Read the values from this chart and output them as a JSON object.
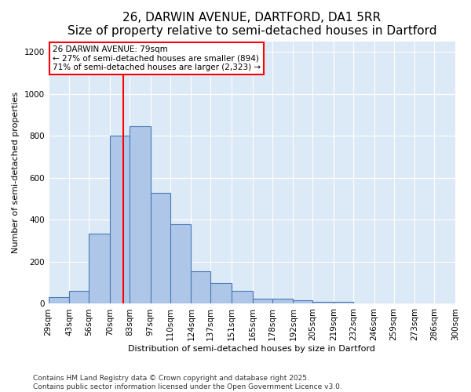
{
  "title": "26, DARWIN AVENUE, DARTFORD, DA1 5RR",
  "subtitle": "Size of property relative to semi-detached houses in Dartford",
  "xlabel": "Distribution of semi-detached houses by size in Dartford",
  "ylabel": "Number of semi-detached properties",
  "footnote1": "Contains HM Land Registry data © Crown copyright and database right 2025.",
  "footnote2": "Contains public sector information licensed under the Open Government Licence v3.0.",
  "annotation_text1": "26 DARWIN AVENUE: 79sqm",
  "annotation_text2": "← 27% of semi-detached houses are smaller (894)",
  "annotation_text3": "71% of semi-detached houses are larger (2,323) →",
  "bins": [
    29,
    43,
    56,
    70,
    83,
    97,
    110,
    124,
    137,
    151,
    165,
    178,
    192,
    205,
    219,
    232,
    246,
    259,
    273,
    286,
    300
  ],
  "counts": [
    30,
    60,
    335,
    800,
    845,
    530,
    380,
    155,
    100,
    60,
    25,
    25,
    15,
    8,
    8,
    3,
    3,
    1,
    1,
    0
  ],
  "bar_color": "#aec6e8",
  "bar_edge_color": "#4a7ab5",
  "vline_color": "red",
  "vline_x": 79,
  "ylim": [
    0,
    1250
  ],
  "yticks": [
    0,
    200,
    400,
    600,
    800,
    1000,
    1200
  ],
  "background_color": "#dce9f7",
  "grid_color": "white",
  "title_fontsize": 11,
  "subtitle_fontsize": 9,
  "axis_label_fontsize": 8,
  "tick_fontsize": 7.5,
  "annot_fontsize": 7.5,
  "footnote_fontsize": 6.5
}
